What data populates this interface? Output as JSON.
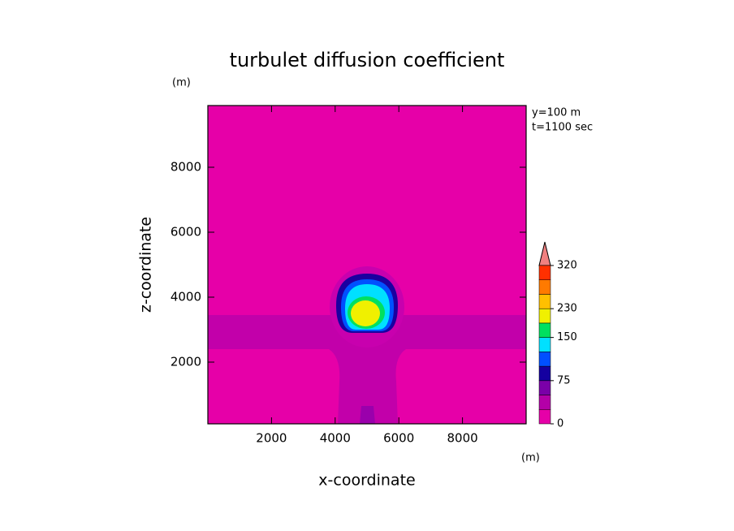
{
  "chart_data": {
    "type": "contour",
    "title": "turbulet diffusion coefficient",
    "x_label": "x-coordinate",
    "y_label": "z-coordinate",
    "x_unit": "(m)",
    "y_unit": "(m)",
    "annotations": [
      "y=100 m",
      "t=1100 sec"
    ],
    "xlim": [
      0,
      10000
    ],
    "ylim": [
      100,
      9900
    ],
    "xticks": [
      2000,
      4000,
      6000,
      8000
    ],
    "yticks": [
      2000,
      4000,
      6000,
      8000
    ],
    "colorbar": {
      "levels": [
        0,
        25,
        50,
        75,
        100,
        125,
        150,
        190,
        230,
        260,
        290,
        320
      ],
      "colors": [
        "#e600a8",
        "#b400a8",
        "#7a00a8",
        "#1400a0",
        "#0050ff",
        "#00e0ff",
        "#00e060",
        "#f0f000",
        "#ffc000",
        "#ff7a00",
        "#ff3000"
      ],
      "ticks": [
        0,
        75,
        150,
        230,
        320
      ]
    }
  }
}
